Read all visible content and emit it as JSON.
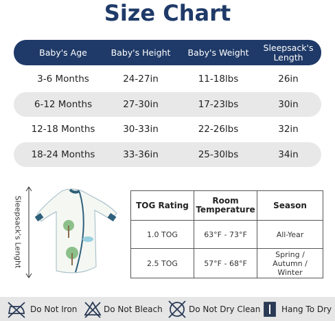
{
  "title": "Size Chart",
  "size_table": {
    "headers": [
      "Baby's Age",
      "Baby's Height",
      "Baby's Weight",
      "Sleepsack's Length"
    ],
    "rows": [
      [
        "3-6 Months",
        "24-27in",
        "11-18lbs",
        "26in"
      ],
      [
        "6-12 Months",
        "27-30in",
        "17-23lbs",
        "30in"
      ],
      [
        "12-18 Months",
        "30-33in",
        "22-26lbs",
        "32in"
      ],
      [
        "18-24 Months",
        "33-36in",
        "25-30lbs",
        "34in"
      ]
    ]
  },
  "side_label": "Sleepsack's Lenght",
  "tog_table": {
    "headers": [
      "TOG Rating",
      "Room Temperature",
      "Season"
    ],
    "rows": [
      [
        "1.0 TOG",
        "63°F - 73°F",
        "All-Year"
      ],
      [
        "2.5 TOG",
        "57°F - 68°F",
        "Spring / Autumn / Winter"
      ]
    ]
  },
  "care": [
    "Do Not Iron",
    "Do Not Bleach",
    "Do Not Dry Clean",
    "Hang To Dry"
  ]
}
